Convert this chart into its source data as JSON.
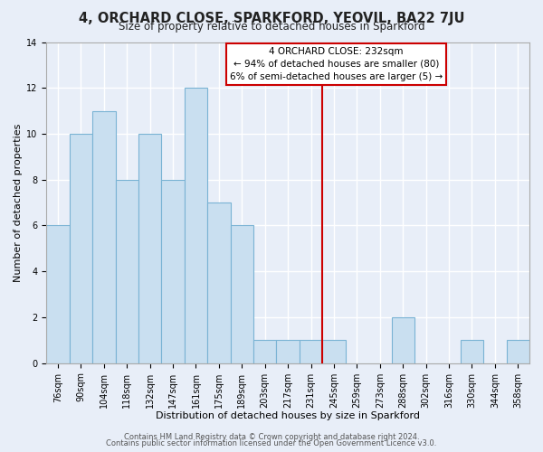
{
  "title1": "4, ORCHARD CLOSE, SPARKFORD, YEOVIL, BA22 7JU",
  "title2": "Size of property relative to detached houses in Sparkford",
  "xlabel": "Distribution of detached houses by size in Sparkford",
  "ylabel": "Number of detached properties",
  "bar_labels": [
    "76sqm",
    "90sqm",
    "104sqm",
    "118sqm",
    "132sqm",
    "147sqm",
    "161sqm",
    "175sqm",
    "189sqm",
    "203sqm",
    "217sqm",
    "231sqm",
    "245sqm",
    "259sqm",
    "273sqm",
    "288sqm",
    "302sqm",
    "316sqm",
    "330sqm",
    "344sqm",
    "358sqm"
  ],
  "bar_heights": [
    6,
    10,
    11,
    8,
    10,
    8,
    12,
    7,
    6,
    1,
    1,
    1,
    1,
    0,
    0,
    2,
    0,
    0,
    1,
    0,
    1
  ],
  "bar_color": "#c9dff0",
  "bar_edge_color": "#7ab3d4",
  "vline_color": "#cc0000",
  "annotation_title": "4 ORCHARD CLOSE: 232sqm",
  "annotation_line1": "← 94% of detached houses are smaller (80)",
  "annotation_line2": "6% of semi-detached houses are larger (5) →",
  "ylim": [
    0,
    14
  ],
  "yticks": [
    0,
    2,
    4,
    6,
    8,
    10,
    12,
    14
  ],
  "footer1": "Contains HM Land Registry data © Crown copyright and database right 2024.",
  "footer2": "Contains public sector information licensed under the Open Government Licence v3.0.",
  "bg_color": "#e8eef8",
  "plot_bg_color": "#e8eef8",
  "grid_color": "#ffffff",
  "title1_fontsize": 10.5,
  "title2_fontsize": 8.5,
  "axis_label_fontsize": 8,
  "tick_fontsize": 7,
  "footer_fontsize": 6
}
